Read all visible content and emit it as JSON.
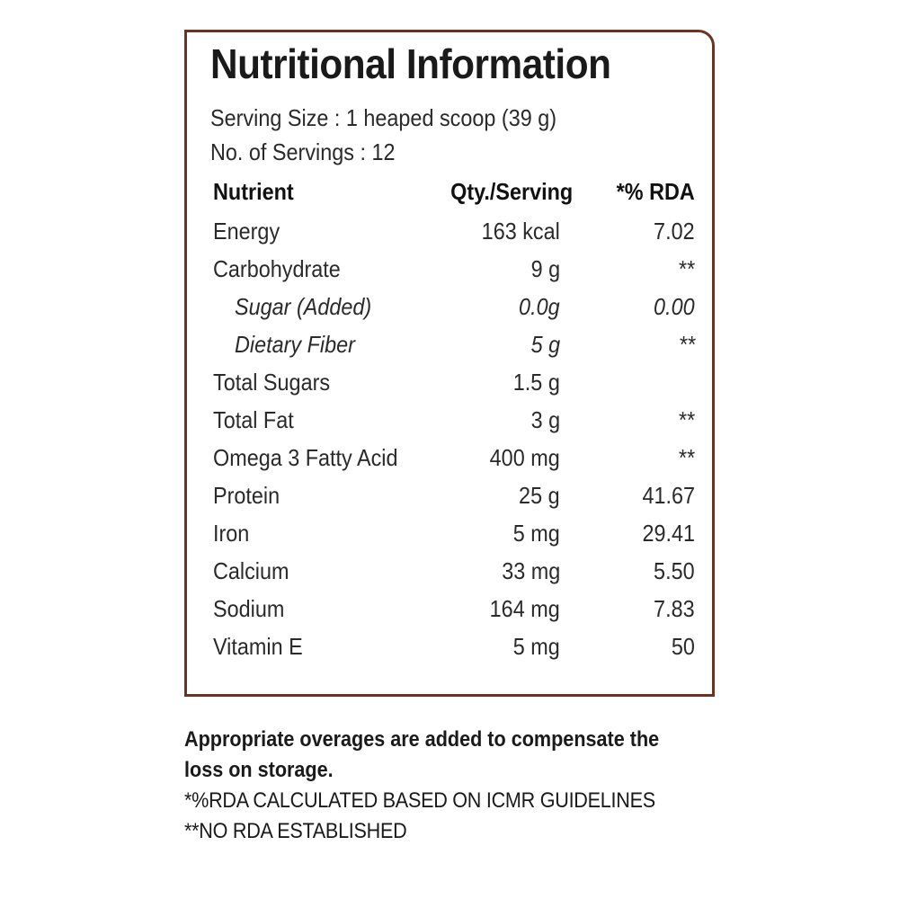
{
  "title": "Nutritional Information",
  "serving_size": "Serving Size : 1 heaped scoop (39 g)",
  "servings": "No. of Servings : 12",
  "table": {
    "headers": {
      "nutrient": "Nutrient",
      "qty": "Qty./Serving",
      "rda": "*% RDA"
    },
    "rows": [
      {
        "name": "Energy",
        "qty": "163 kcal",
        "rda": "7.02",
        "sub": false
      },
      {
        "name": "Carbohydrate",
        "qty": "9 g",
        "rda": "**",
        "sub": false
      },
      {
        "name": "Sugar (Added)",
        "qty": "0.0g",
        "rda": "0.00",
        "sub": true
      },
      {
        "name": "Dietary Fiber",
        "qty": "5 g",
        "rda": "**",
        "sub": true
      },
      {
        "name": "Total Sugars",
        "qty": "1.5 g",
        "rda": "",
        "sub": false
      },
      {
        "name": "Total Fat",
        "qty": "3 g",
        "rda": "**",
        "sub": false
      },
      {
        "name": "Omega 3 Fatty Acid",
        "qty": "400 mg",
        "rda": "**",
        "sub": false
      },
      {
        "name": "Protein",
        "qty": "25 g",
        "rda": "41.67",
        "sub": false
      },
      {
        "name": "Iron",
        "qty": "5 mg",
        "rda": "29.41",
        "sub": false
      },
      {
        "name": "Calcium",
        "qty": "33 mg",
        "rda": "5.50",
        "sub": false
      },
      {
        "name": "Sodium",
        "qty": "164 mg",
        "rda": "7.83",
        "sub": false
      },
      {
        "name": "Vitamin E",
        "qty": "5 mg",
        "rda": "50",
        "sub": false
      }
    ]
  },
  "footnotes": {
    "overages_line1": "Appropriate overages are added to compensate the",
    "overages_line2": "loss on storage.",
    "rda_calc": "*%RDA CALCULATED BASED ON ICMR GUIDELINES",
    "no_rda": "**NO RDA ESTABLISHED"
  },
  "colors": {
    "border": "#6b3322",
    "text": "#1e1e1e"
  }
}
